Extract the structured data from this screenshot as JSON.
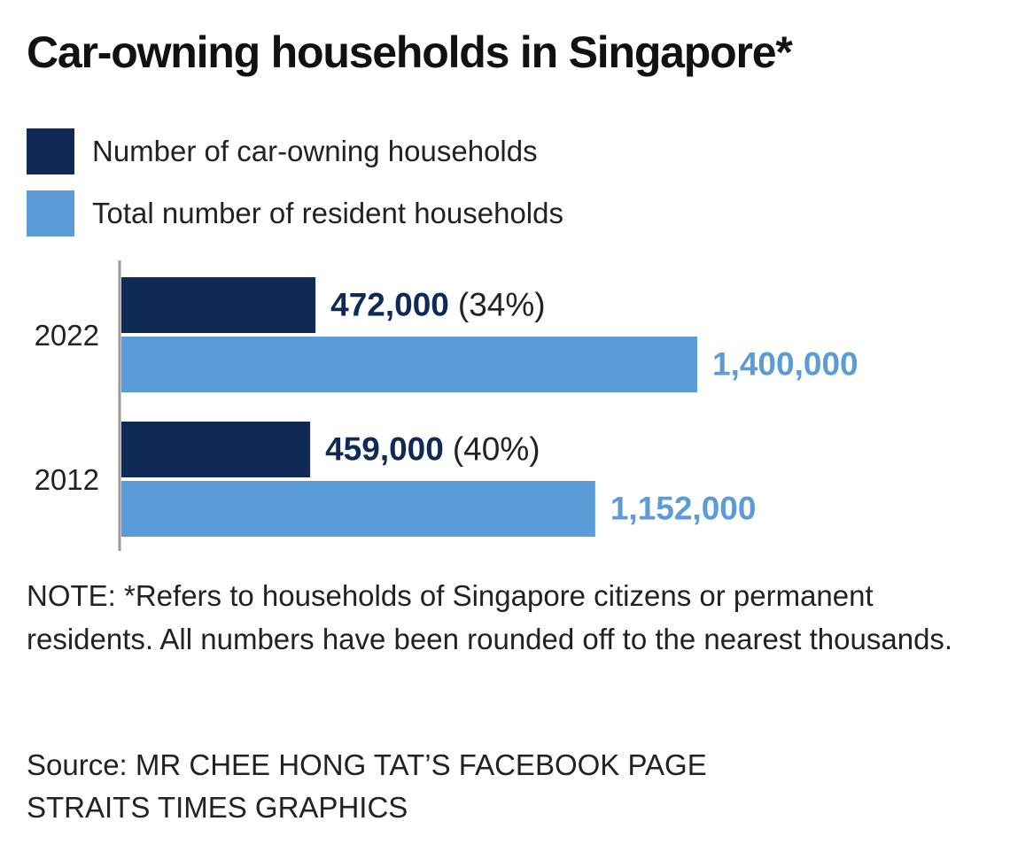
{
  "title": "Car-owning households in Singapore*",
  "colors": {
    "car_owning": "#0f2a56",
    "total": "#5b9bd8",
    "axis": "#9a9a9a",
    "text": "#222222"
  },
  "chart_data": {
    "type": "bar",
    "orientation": "horizontal",
    "categories": [
      "2022",
      "2012"
    ],
    "series": [
      {
        "name": "Number of car-owning households",
        "values": [
          472000,
          459000
        ],
        "labels": [
          "472,000",
          "459,000"
        ],
        "percent_labels": [
          "(34%)",
          "(40%)"
        ]
      },
      {
        "name": "Total number of resident households",
        "values": [
          1400000,
          1152000
        ],
        "labels": [
          "1,400,000",
          "1,152,000"
        ]
      }
    ],
    "xlim": [
      0,
      1400000
    ],
    "grid": false,
    "legend_position": "top-left"
  },
  "note": "NOTE: *Refers to households of Singapore citizens or permanent residents. All numbers have been rounded off to the nearest thousands.",
  "source_line1": "Source: MR CHEE HONG TAT’S FACEBOOK PAGE",
  "source_line2": "STRAITS TIMES GRAPHICS"
}
